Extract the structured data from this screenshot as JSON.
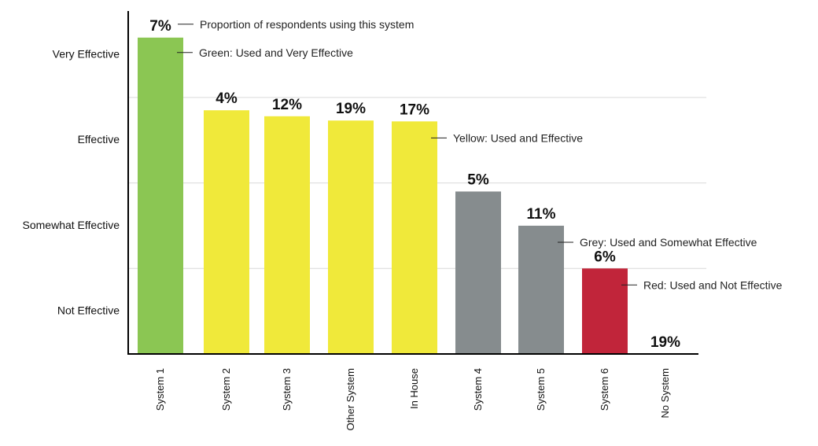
{
  "chart_data": {
    "type": "bar",
    "categories": [
      "System 1",
      "System 2",
      "System 3",
      "Other System",
      "In House",
      "System 4",
      "System 5",
      "System 6",
      "No System"
    ],
    "values": [
      3.7,
      2.85,
      2.78,
      2.73,
      2.72,
      1.9,
      1.5,
      1.0,
      0
    ],
    "usage_labels": [
      "7%",
      "4%",
      "12%",
      "19%",
      "17%",
      "5%",
      "11%",
      "6%",
      "19%"
    ],
    "colors": [
      "#8bc653",
      "#f0e93a",
      "#f0e93a",
      "#f0e93a",
      "#f0e93a",
      "#868c8e",
      "#868c8e",
      "#c1253a",
      "#ffffff"
    ],
    "y_tick_labels": [
      "Not Effective",
      "Effective",
      "Somewhat Effective",
      "Very Effective"
    ],
    "y_ticks": [
      {
        "label": "Very Effective",
        "value": 3.5
      },
      {
        "label": "Effective",
        "value": 2.5
      },
      {
        "label": "Somewhat Effective",
        "value": 1.5
      },
      {
        "label": "Not Effective",
        "value": 0.5
      }
    ],
    "ylim": [
      0,
      4
    ],
    "grid": true,
    "gridlines": [
      1,
      2,
      3
    ],
    "annotations": [
      {
        "text": "Proportion of respondents using this system",
        "target_index": 0,
        "anchor": "label"
      },
      {
        "text": "Green: Used and Very Effective",
        "target_index": 0,
        "anchor": "bar"
      },
      {
        "text": "Yellow: Used and Effective",
        "target_index": 4,
        "anchor": "bar"
      },
      {
        "text": "Grey: Used and Somewhat Effective",
        "target_index": 6,
        "anchor": "bar"
      },
      {
        "text": "Red: Used and Not Effective",
        "target_index": 7,
        "anchor": "bar"
      }
    ]
  }
}
